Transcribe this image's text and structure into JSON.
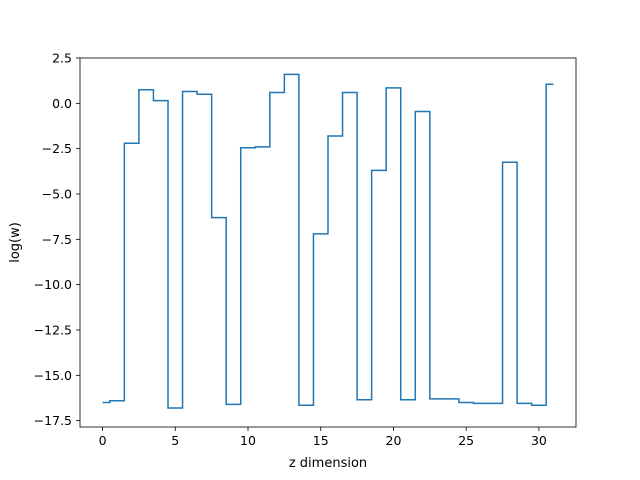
{
  "chart_data": {
    "type": "line",
    "drawstyle": "steps-mid",
    "title": "",
    "xlabel": "z dimension",
    "ylabel": "log(w)",
    "xlim": [
      -1.55,
      32.55
    ],
    "ylim": [
      -17.85,
      2.5
    ],
    "xticks": [
      0,
      5,
      10,
      15,
      20,
      25,
      30
    ],
    "yticks": [
      2.5,
      0.0,
      -2.5,
      -5.0,
      -7.5,
      -10.0,
      -12.5,
      -15.0,
      -17.5
    ],
    "xtick_labels": [
      "0",
      "5",
      "10",
      "15",
      "20",
      "25",
      "30"
    ],
    "ytick_labels": [
      "2.5",
      "0.0",
      "−2.5",
      "−5.0",
      "−7.5",
      "−10.0",
      "−12.5",
      "−15.0",
      "−17.5"
    ],
    "grid": false,
    "line_color": "#1f77b4",
    "series": [
      {
        "x": [
          0,
          1,
          2,
          3,
          4,
          5,
          6,
          7,
          8,
          9,
          10,
          11,
          12,
          13,
          14,
          15,
          16,
          17,
          18,
          19,
          20,
          21,
          22,
          23,
          24,
          25,
          26,
          27,
          28,
          29,
          30,
          31
        ],
        "values": [
          -16.5,
          -16.4,
          -2.2,
          0.75,
          0.15,
          -16.8,
          0.65,
          0.5,
          -6.3,
          -16.6,
          -2.45,
          -2.4,
          0.6,
          1.6,
          -16.65,
          -7.2,
          -1.8,
          0.6,
          -16.35,
          -3.7,
          0.85,
          -16.35,
          -0.45,
          -16.3,
          -16.3,
          -16.5,
          -16.55,
          -16.55,
          -3.25,
          -16.55,
          -16.65,
          1.05
        ]
      }
    ]
  }
}
